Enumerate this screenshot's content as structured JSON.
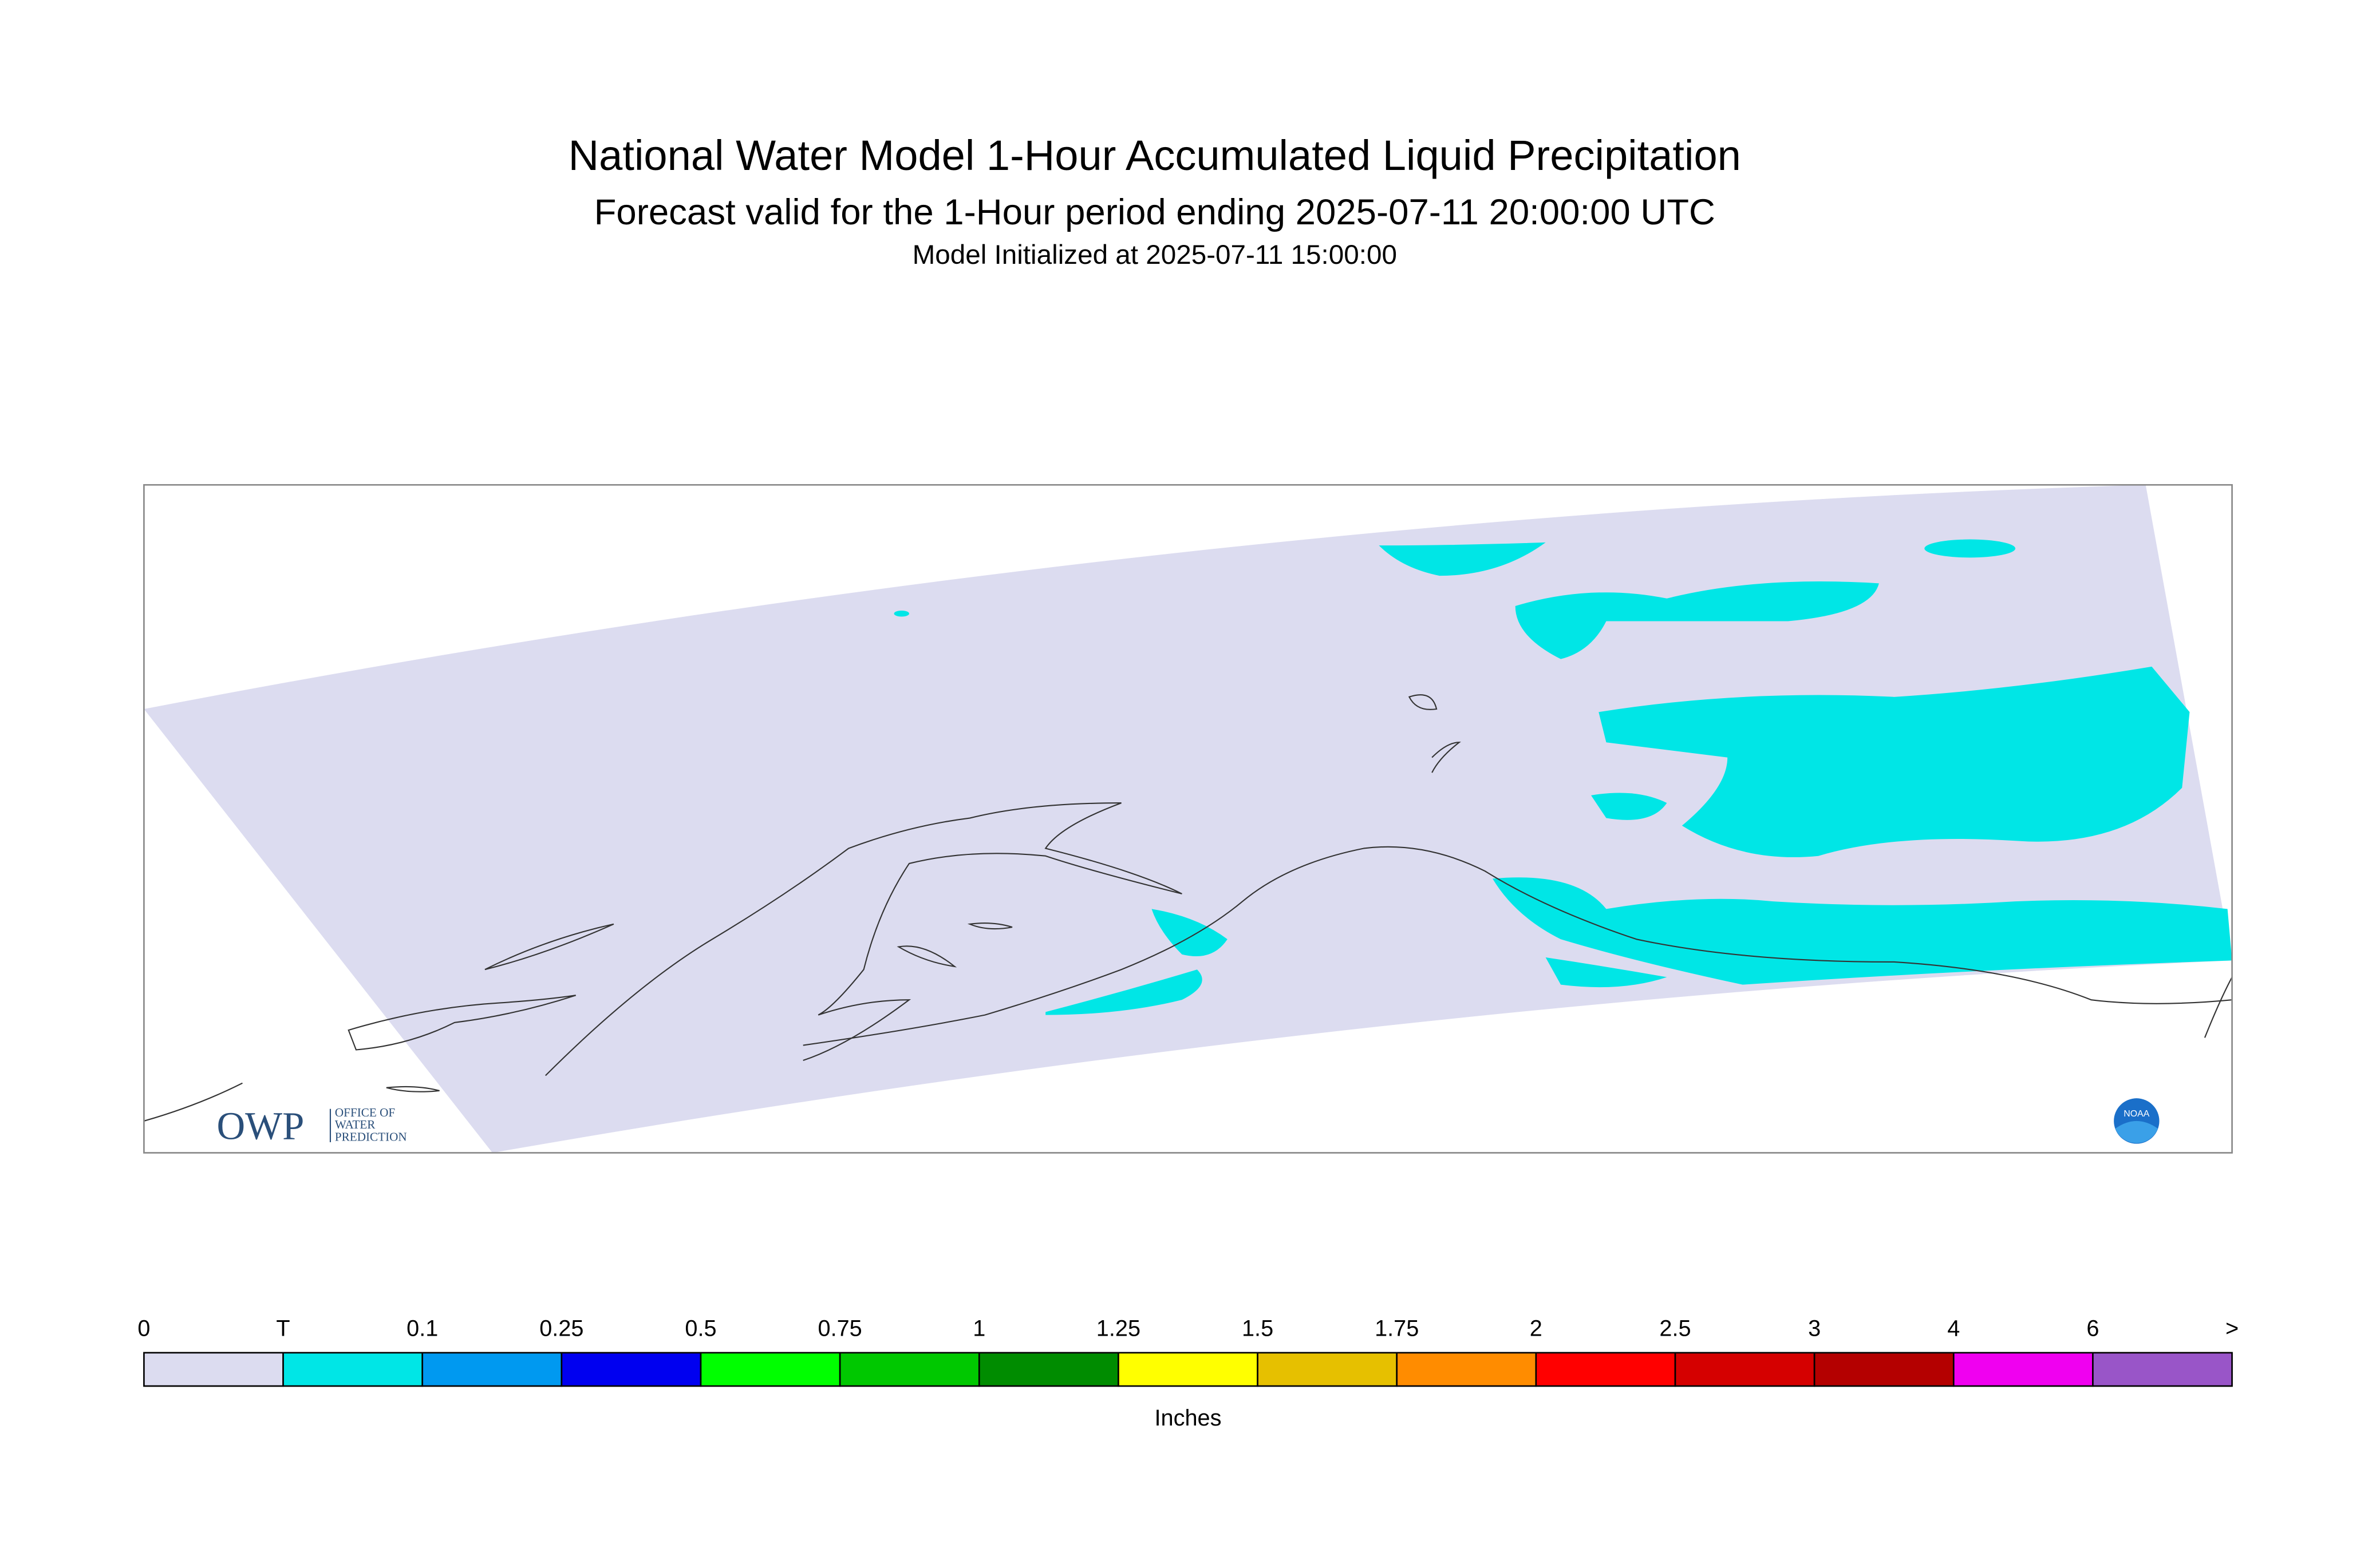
{
  "header": {
    "title": "National Water Model 1-Hour Accumulated Liquid Precipitation",
    "subtitle": "Forecast valid for the 1-Hour period ending 2025-07-11 20:00:00 UTC",
    "init": "Model Initialized at 2025-07-11 15:00:00"
  },
  "legend": {
    "labels": [
      "0",
      "T",
      "0.1",
      "0.25",
      "0.5",
      "0.75",
      "1",
      "1.25",
      "1.5",
      "1.75",
      "2",
      "2.5",
      "3",
      "4",
      "6",
      ">"
    ],
    "colors": [
      "#dcdcf0",
      "#00e6e6",
      "#0099f0",
      "#0000f0",
      "#00ff00",
      "#00c800",
      "#008c00",
      "#ffff00",
      "#e6c000",
      "#ff8c00",
      "#ff0000",
      "#d50000",
      "#b40000",
      "#f000f0",
      "#9955c8"
    ],
    "unit": "Inches"
  },
  "logos": {
    "owp": "OWP",
    "owp_lines": [
      "OFFICE OF",
      "WATER",
      "PREDICTION"
    ],
    "noaa": "NOAA"
  }
}
